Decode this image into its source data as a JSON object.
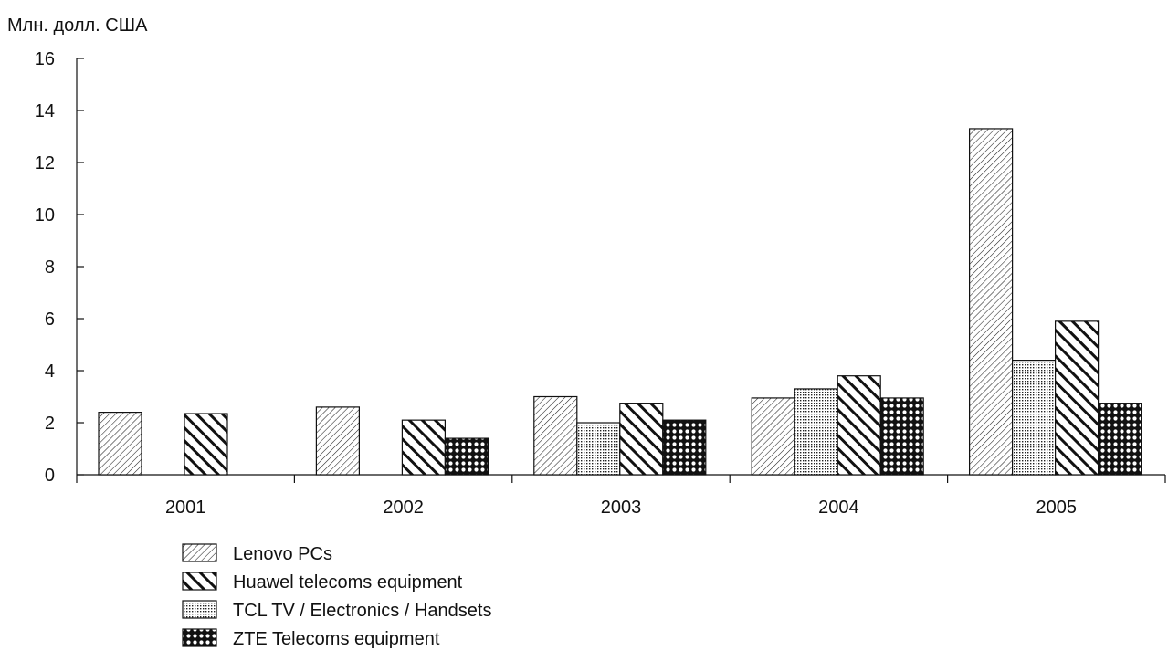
{
  "chart_data": {
    "type": "bar",
    "ylabel": "Млн. долл. США",
    "categories": [
      "2001",
      "2002",
      "2003",
      "2004",
      "2005"
    ],
    "ylim": [
      0,
      16
    ],
    "yticks": [
      0,
      2,
      4,
      6,
      8,
      10,
      12,
      14,
      16
    ],
    "grid": false,
    "legend_position": "bottom-left",
    "series": [
      {
        "name": "Lenovo PCs",
        "pattern": "diag-fine",
        "values": [
          2.4,
          2.6,
          3.0,
          2.95,
          13.3
        ]
      },
      {
        "name": "Huawel telecoms equipment",
        "pattern": "diag-bold",
        "values": [
          2.35,
          2.1,
          2.75,
          3.8,
          5.9
        ]
      },
      {
        "name": "TCL TV / Electronics / Handsets",
        "pattern": "dots",
        "values": [
          null,
          null,
          2.0,
          3.3,
          4.4
        ]
      },
      {
        "name": "ZTE Telecoms equipment",
        "pattern": "circles",
        "values": [
          null,
          1.4,
          2.1,
          2.95,
          2.75
        ]
      }
    ],
    "bar_order": [
      "Lenovo PCs",
      "TCL TV / Electronics / Handsets",
      "Huawel telecoms equipment",
      "ZTE Telecoms equipment"
    ]
  }
}
